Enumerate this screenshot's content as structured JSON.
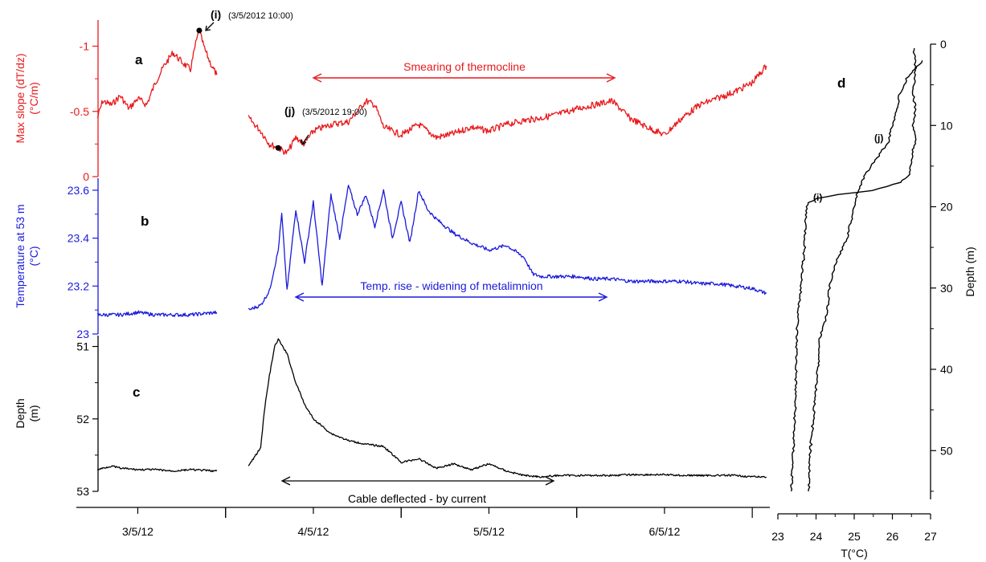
{
  "colors": {
    "panel_a": "#e8191b",
    "panel_b": "#1a1adb",
    "panel_c": "#000000",
    "panel_d": "#000000",
    "background": "#ffffff"
  },
  "chart_data": [
    {
      "type": "line",
      "panel": "a",
      "ylabel": "Max slope (dT/dz)\n(°C/m)",
      "ylim": [
        0,
        -1.2
      ],
      "yticks": [
        -1,
        -0.5,
        0
      ],
      "ytick_labels": [
        "-1",
        "-0.5",
        "0"
      ],
      "annotations": [
        "Smearing of thermocline",
        "(i)",
        "(3/5/2012 10:00)",
        "(j)",
        "(3/5/2012 19:00)"
      ],
      "markers": [
        {
          "label": "(i)",
          "x": 3.35,
          "y": -1.12
        },
        {
          "label": "(j)",
          "x": 3.8,
          "y": -0.22
        }
      ],
      "series": [
        {
          "segment": 1,
          "x": [
            2.77,
            2.8,
            2.85,
            2.9,
            2.95,
            3.0,
            3.05,
            3.1,
            3.15,
            3.2,
            3.25,
            3.3,
            3.33,
            3.35,
            3.38,
            3.42,
            3.45
          ],
          "y": [
            -0.45,
            -0.58,
            -0.55,
            -0.62,
            -0.52,
            -0.6,
            -0.55,
            -0.72,
            -0.85,
            -0.95,
            -0.88,
            -0.82,
            -1.02,
            -1.12,
            -0.98,
            -0.85,
            -0.78
          ]
        },
        {
          "segment": 2,
          "x": [
            3.63,
            3.7,
            3.75,
            3.8,
            3.85,
            3.9,
            3.95,
            4.0,
            4.1,
            4.2,
            4.3,
            4.35,
            4.4,
            4.5,
            4.6,
            4.7,
            4.8,
            4.9,
            5.0,
            5.1,
            5.2,
            5.3,
            5.4,
            5.5,
            5.6,
            5.7,
            5.75,
            5.8,
            5.9,
            6.0,
            6.1,
            6.2,
            6.3,
            6.4,
            6.5,
            6.58
          ],
          "y": [
            -0.45,
            -0.35,
            -0.25,
            -0.22,
            -0.18,
            -0.3,
            -0.25,
            -0.35,
            -0.4,
            -0.42,
            -0.58,
            -0.55,
            -0.38,
            -0.32,
            -0.4,
            -0.3,
            -0.33,
            -0.38,
            -0.35,
            -0.4,
            -0.43,
            -0.45,
            -0.48,
            -0.52,
            -0.55,
            -0.58,
            -0.52,
            -0.45,
            -0.38,
            -0.32,
            -0.45,
            -0.55,
            -0.6,
            -0.65,
            -0.72,
            -0.85
          ]
        }
      ]
    },
    {
      "type": "line",
      "panel": "b",
      "ylabel": "Temperature at 53 m\n(°C)",
      "ylim": [
        23.0,
        23.65
      ],
      "yticks": [
        23,
        23.2,
        23.4,
        23.6
      ],
      "ytick_labels": [
        "23",
        "23.2",
        "23.4",
        "23.6"
      ],
      "annotations": [
        "Temp. rise - widening of metalimnion"
      ],
      "series": [
        {
          "segment": 1,
          "x": [
            2.77,
            2.9,
            3.0,
            3.1,
            3.2,
            3.3,
            3.45
          ],
          "y": [
            23.08,
            23.08,
            23.09,
            23.08,
            23.08,
            23.08,
            23.09
          ]
        },
        {
          "segment": 2,
          "x": [
            3.63,
            3.7,
            3.75,
            3.8,
            3.82,
            3.85,
            3.9,
            3.95,
            4.0,
            4.05,
            4.1,
            4.15,
            4.2,
            4.25,
            4.3,
            4.35,
            4.4,
            4.45,
            4.5,
            4.55,
            4.6,
            4.65,
            4.7,
            4.75,
            4.8,
            4.9,
            5.0,
            5.1,
            5.2,
            5.25,
            5.3,
            5.4,
            5.5,
            5.6,
            5.7,
            5.8,
            5.9,
            6.0,
            6.1,
            6.2,
            6.3,
            6.4,
            6.5,
            6.58
          ],
          "y": [
            23.1,
            23.12,
            23.18,
            23.35,
            23.5,
            23.18,
            23.52,
            23.3,
            23.55,
            23.2,
            23.58,
            23.4,
            23.62,
            23.5,
            23.58,
            23.45,
            23.6,
            23.4,
            23.55,
            23.38,
            23.6,
            23.52,
            23.48,
            23.45,
            23.42,
            23.38,
            23.35,
            23.37,
            23.32,
            23.25,
            23.24,
            23.24,
            23.24,
            23.23,
            23.23,
            23.22,
            23.22,
            23.22,
            23.22,
            23.21,
            23.21,
            23.2,
            23.19,
            23.17
          ]
        }
      ]
    },
    {
      "type": "line",
      "panel": "c",
      "ylabel": "Depth\n(m)",
      "ylim": [
        53.0,
        50.85
      ],
      "yticks": [
        51,
        52,
        53
      ],
      "ytick_labels": [
        "51",
        "52",
        "53"
      ],
      "annotations": [
        "Cable deflected - by current"
      ],
      "series": [
        {
          "segment": 1,
          "x": [
            2.77,
            2.85,
            2.9,
            3.0,
            3.1,
            3.2,
            3.3,
            3.45
          ],
          "y": [
            52.7,
            52.65,
            52.68,
            52.7,
            52.7,
            52.72,
            52.7,
            52.72
          ]
        },
        {
          "segment": 2,
          "x": [
            3.63,
            3.7,
            3.72,
            3.75,
            3.78,
            3.8,
            3.85,
            3.9,
            3.95,
            4.0,
            4.1,
            4.2,
            4.3,
            4.4,
            4.5,
            4.6,
            4.7,
            4.8,
            4.9,
            5.0,
            5.1,
            5.2,
            5.3,
            5.4,
            5.5,
            5.6,
            5.7,
            5.8,
            5.9,
            6.0,
            6.1,
            6.2,
            6.3,
            6.4,
            6.5,
            6.58
          ],
          "y": [
            52.65,
            52.4,
            51.9,
            51.4,
            51.0,
            50.9,
            51.1,
            51.5,
            51.8,
            52.0,
            52.2,
            52.3,
            52.35,
            52.38,
            52.6,
            52.55,
            52.68,
            52.62,
            52.7,
            52.62,
            52.72,
            52.78,
            52.8,
            52.78,
            52.78,
            52.78,
            52.78,
            52.77,
            52.77,
            52.77,
            52.78,
            52.78,
            52.78,
            52.78,
            52.8,
            52.8
          ]
        }
      ]
    },
    {
      "type": "line",
      "panel": "d",
      "xlabel": "T(°C)",
      "ylabel": "Depth (m)",
      "xlim": [
        23,
        27
      ],
      "xticks": [
        23,
        24,
        25,
        26,
        27
      ],
      "xtick_labels": [
        "23",
        "24",
        "25",
        "26",
        "27"
      ],
      "ylim": [
        0,
        56
      ],
      "yticks": [
        0,
        10,
        20,
        30,
        40,
        50
      ],
      "ytick_labels": [
        "0",
        "10",
        "20",
        "30",
        "40",
        "50"
      ],
      "series": [
        {
          "name": "(i)",
          "depth": [
            0.5,
            2,
            4,
            6,
            8,
            10,
            12,
            14,
            16,
            17,
            18,
            18.5,
            19,
            19.5,
            20,
            25,
            30,
            35,
            40,
            45,
            50,
            55
          ],
          "temperature": [
            26.55,
            26.6,
            26.6,
            26.55,
            26.6,
            26.55,
            26.6,
            26.5,
            26.45,
            26.2,
            25.5,
            24.6,
            24.0,
            23.8,
            23.75,
            23.7,
            23.6,
            23.5,
            23.48,
            23.45,
            23.4,
            23.35
          ]
        },
        {
          "name": "(j)",
          "depth": [
            2,
            4,
            6,
            8,
            10,
            12,
            14,
            16,
            18,
            20,
            22,
            24,
            26,
            28,
            30,
            33,
            36,
            40,
            45,
            50,
            55
          ],
          "temperature": [
            26.8,
            26.4,
            26.2,
            26.1,
            26.0,
            25.9,
            25.6,
            25.3,
            25.1,
            25.0,
            24.9,
            24.8,
            24.6,
            24.45,
            24.35,
            24.3,
            24.1,
            24.05,
            23.95,
            23.85,
            23.8
          ]
        }
      ]
    },
    {
      "type": "line",
      "panel": "time_axis",
      "xticks": [
        3,
        4,
        5,
        6
      ],
      "xtick_labels": [
        "3/5/12",
        "4/5/12",
        "5/5/12",
        "6/5/12"
      ],
      "xlim": [
        2.65,
        6.6
      ]
    }
  ]
}
